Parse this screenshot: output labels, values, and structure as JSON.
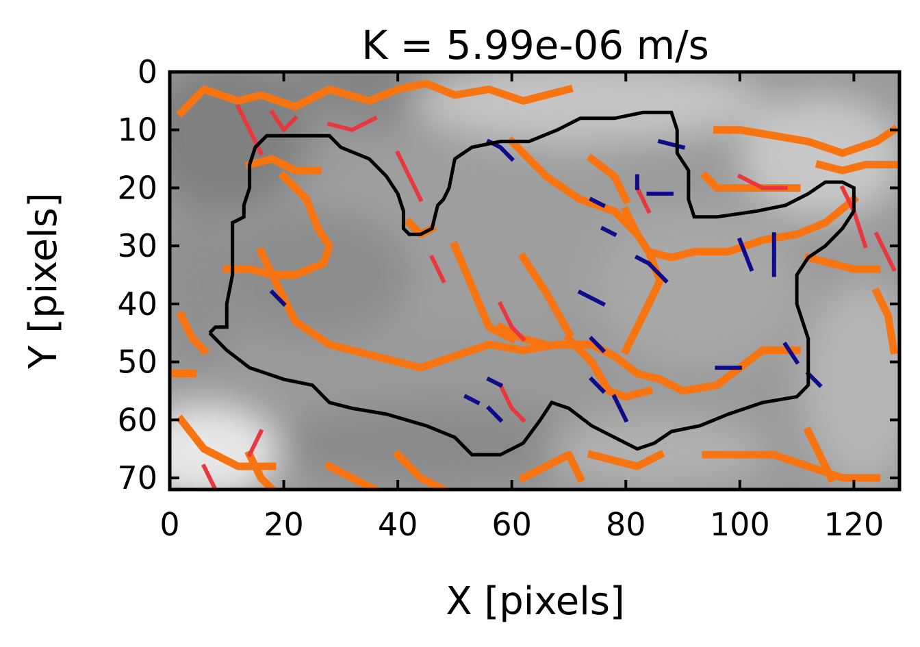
{
  "chart_data": {
    "type": "heatmap",
    "title": "K = 5.99e-06 m/s",
    "xlabel": "X [pixels]",
    "ylabel": "Y [pixels]",
    "xlim": [
      0,
      128
    ],
    "ylim": [
      72,
      0
    ],
    "xticks": [
      0,
      20,
      40,
      60,
      80,
      100,
      120
    ],
    "yticks": [
      0,
      10,
      20,
      30,
      40,
      50,
      60,
      70
    ],
    "grid": false,
    "colormap": "gray",
    "colors": {
      "fracture_main": "#f77410",
      "fracture_secondary": "#e8383d",
      "fracture_minor": "#0d0d8c",
      "boundary": "#000000",
      "axes": "#000000"
    },
    "boundary_contour": [
      [
        7,
        45
      ],
      [
        8,
        44
      ],
      [
        10,
        44
      ],
      [
        10,
        40
      ],
      [
        11,
        35
      ],
      [
        11,
        30
      ],
      [
        11,
        26
      ],
      [
        13,
        25
      ],
      [
        13,
        23
      ],
      [
        14,
        20
      ],
      [
        14,
        16
      ],
      [
        15,
        13
      ],
      [
        17,
        11
      ],
      [
        22,
        11
      ],
      [
        28,
        11
      ],
      [
        30,
        13
      ],
      [
        35,
        15
      ],
      [
        38,
        18
      ],
      [
        40,
        21
      ],
      [
        41,
        24
      ],
      [
        41,
        27
      ],
      [
        42,
        28
      ],
      [
        44,
        28
      ],
      [
        46,
        27
      ],
      [
        47,
        23
      ],
      [
        48,
        22
      ],
      [
        49,
        20
      ],
      [
        50,
        15
      ],
      [
        53,
        13
      ],
      [
        58,
        12
      ],
      [
        63,
        12
      ],
      [
        68,
        10
      ],
      [
        72,
        8
      ],
      [
        78,
        8
      ],
      [
        83,
        7
      ],
      [
        88,
        7
      ],
      [
        89,
        10
      ],
      [
        89,
        14
      ],
      [
        91,
        17
      ],
      [
        91,
        22
      ],
      [
        92,
        25
      ],
      [
        96,
        25
      ],
      [
        103,
        24
      ],
      [
        108,
        23
      ],
      [
        112,
        21
      ],
      [
        115,
        19
      ],
      [
        118,
        19
      ],
      [
        120,
        20
      ],
      [
        120,
        24
      ],
      [
        118,
        27
      ],
      [
        115,
        30
      ],
      [
        112,
        32
      ],
      [
        110,
        35
      ],
      [
        110,
        40
      ],
      [
        111,
        43
      ],
      [
        112,
        46
      ],
      [
        112,
        54
      ],
      [
        110,
        56
      ],
      [
        104,
        57
      ],
      [
        98,
        59
      ],
      [
        93,
        61
      ],
      [
        88,
        62
      ],
      [
        85,
        64
      ],
      [
        82,
        65
      ],
      [
        78,
        63
      ],
      [
        74,
        61
      ],
      [
        70,
        58
      ],
      [
        67,
        57
      ],
      [
        65,
        60
      ],
      [
        62,
        64
      ],
      [
        58,
        66
      ],
      [
        53,
        66
      ],
      [
        50,
        63
      ],
      [
        45,
        61
      ],
      [
        38,
        59
      ],
      [
        32,
        58
      ],
      [
        28,
        57
      ],
      [
        25,
        54
      ],
      [
        20,
        53
      ],
      [
        14,
        51
      ],
      [
        10,
        48
      ],
      [
        7,
        45
      ]
    ],
    "fracture_paths_main": [
      [
        [
          2,
          7
        ],
        [
          6,
          3
        ],
        [
          12,
          5
        ],
        [
          16,
          4
        ],
        [
          22,
          6
        ],
        [
          28,
          3
        ],
        [
          35,
          5
        ],
        [
          40,
          3
        ],
        [
          45,
          2
        ],
        [
          50,
          4
        ],
        [
          56,
          3
        ],
        [
          62,
          5
        ],
        [
          70,
          3
        ]
      ],
      [
        [
          14,
          16
        ],
        [
          18,
          15
        ],
        [
          22,
          17
        ],
        [
          26,
          17
        ]
      ],
      [
        [
          20,
          18
        ],
        [
          24,
          22
        ],
        [
          26,
          27
        ],
        [
          28,
          30
        ],
        [
          27,
          33
        ],
        [
          22,
          35
        ],
        [
          18,
          35
        ],
        [
          14,
          34
        ],
        [
          10,
          34
        ]
      ],
      [
        [
          16,
          31
        ],
        [
          19,
          37
        ],
        [
          22,
          43
        ],
        [
          28,
          47
        ],
        [
          36,
          49
        ],
        [
          44,
          51
        ],
        [
          50,
          49
        ],
        [
          56,
          47
        ],
        [
          62,
          48
        ],
        [
          68,
          47
        ],
        [
          74,
          47
        ],
        [
          78,
          49
        ],
        [
          82,
          52
        ],
        [
          86,
          53
        ],
        [
          90,
          55
        ],
        [
          96,
          54
        ],
        [
          100,
          51
        ],
        [
          104,
          48
        ],
        [
          110,
          48
        ]
      ],
      [
        [
          42,
          26
        ],
        [
          44,
          28
        ],
        [
          46,
          27
        ]
      ],
      [
        [
          50,
          30
        ],
        [
          56,
          44
        ],
        [
          60,
          46
        ]
      ],
      [
        [
          58,
          44
        ],
        [
          62,
          46
        ],
        [
          66,
          47
        ]
      ],
      [
        [
          62,
          32
        ],
        [
          66,
          38
        ],
        [
          70,
          45
        ]
      ],
      [
        [
          70,
          46
        ],
        [
          74,
          50
        ],
        [
          77,
          55
        ],
        [
          80,
          56
        ],
        [
          84,
          55
        ]
      ],
      [
        [
          60,
          12
        ],
        [
          66,
          18
        ],
        [
          72,
          22
        ],
        [
          78,
          24
        ],
        [
          82,
          28
        ],
        [
          84,
          31
        ],
        [
          88,
          32
        ],
        [
          92,
          31
        ],
        [
          98,
          31
        ],
        [
          104,
          29
        ],
        [
          110,
          28
        ],
        [
          115,
          26
        ],
        [
          120,
          22
        ]
      ],
      [
        [
          74,
          15
        ],
        [
          78,
          18
        ],
        [
          80,
          22
        ]
      ],
      [
        [
          80,
          24
        ],
        [
          82,
          28
        ],
        [
          84,
          31
        ],
        [
          86,
          36
        ],
        [
          84,
          40
        ],
        [
          82,
          44
        ],
        [
          80,
          48
        ]
      ],
      [
        [
          96,
          10
        ],
        [
          100,
          10
        ],
        [
          106,
          11
        ],
        [
          112,
          12
        ],
        [
          118,
          14
        ],
        [
          124,
          12
        ],
        [
          127,
          10
        ]
      ],
      [
        [
          114,
          16
        ],
        [
          118,
          17
        ],
        [
          122,
          16
        ],
        [
          127,
          16
        ]
      ],
      [
        [
          94,
          18
        ],
        [
          96,
          20
        ],
        [
          100,
          20
        ],
        [
          106,
          20
        ],
        [
          110,
          20
        ]
      ],
      [
        [
          112,
          32
        ],
        [
          116,
          33
        ],
        [
          120,
          34
        ],
        [
          124,
          34
        ]
      ],
      [
        [
          124,
          38
        ],
        [
          126,
          42
        ],
        [
          127,
          48
        ]
      ],
      [
        [
          2,
          60
        ],
        [
          6,
          65
        ],
        [
          12,
          68
        ],
        [
          18,
          68
        ]
      ],
      [
        [
          14,
          66
        ],
        [
          16,
          70
        ],
        [
          18,
          72
        ]
      ],
      [
        [
          28,
          68
        ],
        [
          32,
          70
        ],
        [
          36,
          72
        ]
      ],
      [
        [
          40,
          66
        ],
        [
          44,
          70
        ],
        [
          48,
          72
        ]
      ],
      [
        [
          62,
          70
        ],
        [
          66,
          68
        ],
        [
          70,
          66
        ],
        [
          72,
          70
        ]
      ],
      [
        [
          74,
          66
        ],
        [
          78,
          67
        ],
        [
          82,
          68
        ],
        [
          86,
          66
        ]
      ],
      [
        [
          94,
          66
        ],
        [
          100,
          66
        ],
        [
          106,
          66
        ],
        [
          112,
          68
        ],
        [
          118,
          70
        ],
        [
          124,
          70
        ]
      ],
      [
        [
          112,
          62
        ],
        [
          114,
          66
        ],
        [
          116,
          70
        ]
      ],
      [
        [
          2,
          42
        ],
        [
          4,
          46
        ],
        [
          6,
          48
        ]
      ],
      [
        [
          0,
          52
        ],
        [
          4,
          52
        ]
      ]
    ],
    "fracture_paths_secondary": [
      [
        [
          12,
          6
        ],
        [
          14,
          10
        ],
        [
          16,
          14
        ]
      ],
      [
        [
          18,
          7
        ],
        [
          20,
          10
        ],
        [
          22,
          8
        ]
      ],
      [
        [
          28,
          9
        ],
        [
          32,
          10
        ],
        [
          36,
          8
        ]
      ],
      [
        [
          40,
          14
        ],
        [
          42,
          18
        ],
        [
          44,
          22
        ]
      ],
      [
        [
          58,
          40
        ],
        [
          60,
          44
        ],
        [
          62,
          46
        ]
      ],
      [
        [
          58,
          54
        ],
        [
          60,
          58
        ],
        [
          62,
          60
        ]
      ],
      [
        [
          100,
          18
        ],
        [
          104,
          20
        ],
        [
          108,
          20
        ]
      ],
      [
        [
          118,
          20
        ],
        [
          120,
          24
        ],
        [
          122,
          30
        ]
      ],
      [
        [
          124,
          28
        ],
        [
          126,
          32
        ],
        [
          127,
          34
        ]
      ],
      [
        [
          16,
          62
        ],
        [
          14,
          66
        ]
      ],
      [
        [
          6,
          68
        ],
        [
          8,
          72
        ]
      ],
      [
        [
          82,
          20
        ],
        [
          84,
          24
        ]
      ],
      [
        [
          46,
          32
        ],
        [
          48,
          36
        ]
      ]
    ],
    "fracture_paths_minor": [
      [
        [
          56,
          12
        ],
        [
          58,
          13
        ],
        [
          60,
          15
        ]
      ],
      [
        [
          82,
          18
        ],
        [
          82,
          20
        ]
      ],
      [
        [
          86,
          12
        ],
        [
          90,
          13
        ]
      ],
      [
        [
          84,
          21
        ],
        [
          88,
          21
        ]
      ],
      [
        [
          74,
          22
        ],
        [
          76,
          23
        ]
      ],
      [
        [
          76,
          27
        ],
        [
          78,
          28
        ]
      ],
      [
        [
          82,
          32
        ],
        [
          84,
          33
        ]
      ],
      [
        [
          84,
          33
        ],
        [
          87,
          36
        ]
      ],
      [
        [
          72,
          38
        ],
        [
          76,
          40
        ]
      ],
      [
        [
          74,
          46
        ],
        [
          76,
          48
        ]
      ],
      [
        [
          74,
          53
        ],
        [
          76,
          55
        ]
      ],
      [
        [
          78,
          56
        ],
        [
          80,
          60
        ]
      ],
      [
        [
          96,
          51
        ],
        [
          100,
          51
        ]
      ],
      [
        [
          100,
          29
        ],
        [
          102,
          34
        ]
      ],
      [
        [
          106,
          28
        ],
        [
          106,
          35
        ]
      ],
      [
        [
          108,
          47
        ],
        [
          110,
          50
        ]
      ],
      [
        [
          112,
          52
        ],
        [
          114,
          54
        ]
      ],
      [
        [
          56,
          53
        ],
        [
          58,
          54
        ]
      ],
      [
        [
          52,
          56
        ],
        [
          54,
          57
        ]
      ],
      [
        [
          56,
          58
        ],
        [
          58,
          60
        ]
      ],
      [
        [
          18,
          38
        ],
        [
          20,
          40
        ]
      ]
    ]
  }
}
